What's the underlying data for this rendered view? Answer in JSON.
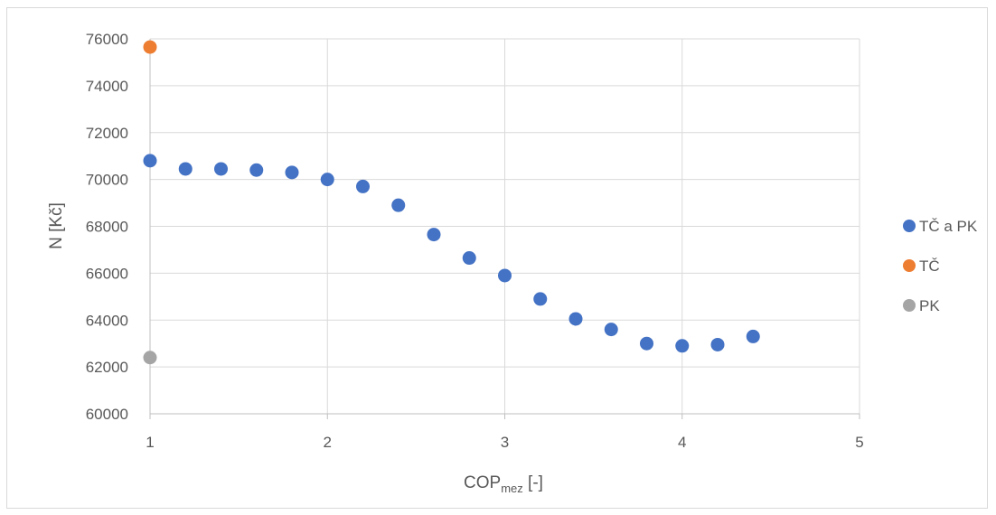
{
  "chart_data": {
    "type": "scatter",
    "xlabel": "COP",
    "xlabel_sub": "mez",
    "xlabel_suffix": " [-]",
    "ylabel": "N [Kč]",
    "xlim": [
      1,
      5
    ],
    "ylim": [
      60000,
      76000
    ],
    "x_ticks": [
      1,
      2,
      3,
      4,
      5
    ],
    "y_ticks": [
      60000,
      62000,
      64000,
      66000,
      68000,
      70000,
      72000,
      74000,
      76000
    ],
    "grid": true,
    "legend_position": "right",
    "series": [
      {
        "name": "TČ a PK",
        "color": "#4472C4",
        "points": [
          [
            1.0,
            70800
          ],
          [
            1.2,
            70450
          ],
          [
            1.4,
            70450
          ],
          [
            1.6,
            70400
          ],
          [
            1.8,
            70300
          ],
          [
            2.0,
            70000
          ],
          [
            2.2,
            69700
          ],
          [
            2.4,
            68900
          ],
          [
            2.6,
            67650
          ],
          [
            2.8,
            66650
          ],
          [
            3.0,
            65900
          ],
          [
            3.2,
            64900
          ],
          [
            3.4,
            64050
          ],
          [
            3.6,
            63600
          ],
          [
            3.8,
            63000
          ],
          [
            4.0,
            62900
          ],
          [
            4.2,
            62950
          ],
          [
            4.4,
            63300
          ]
        ]
      },
      {
        "name": "TČ",
        "color": "#ED7D31",
        "points": [
          [
            1.0,
            75650
          ]
        ]
      },
      {
        "name": "PK",
        "color": "#A5A5A5",
        "points": [
          [
            1.0,
            62400
          ]
        ]
      }
    ]
  }
}
